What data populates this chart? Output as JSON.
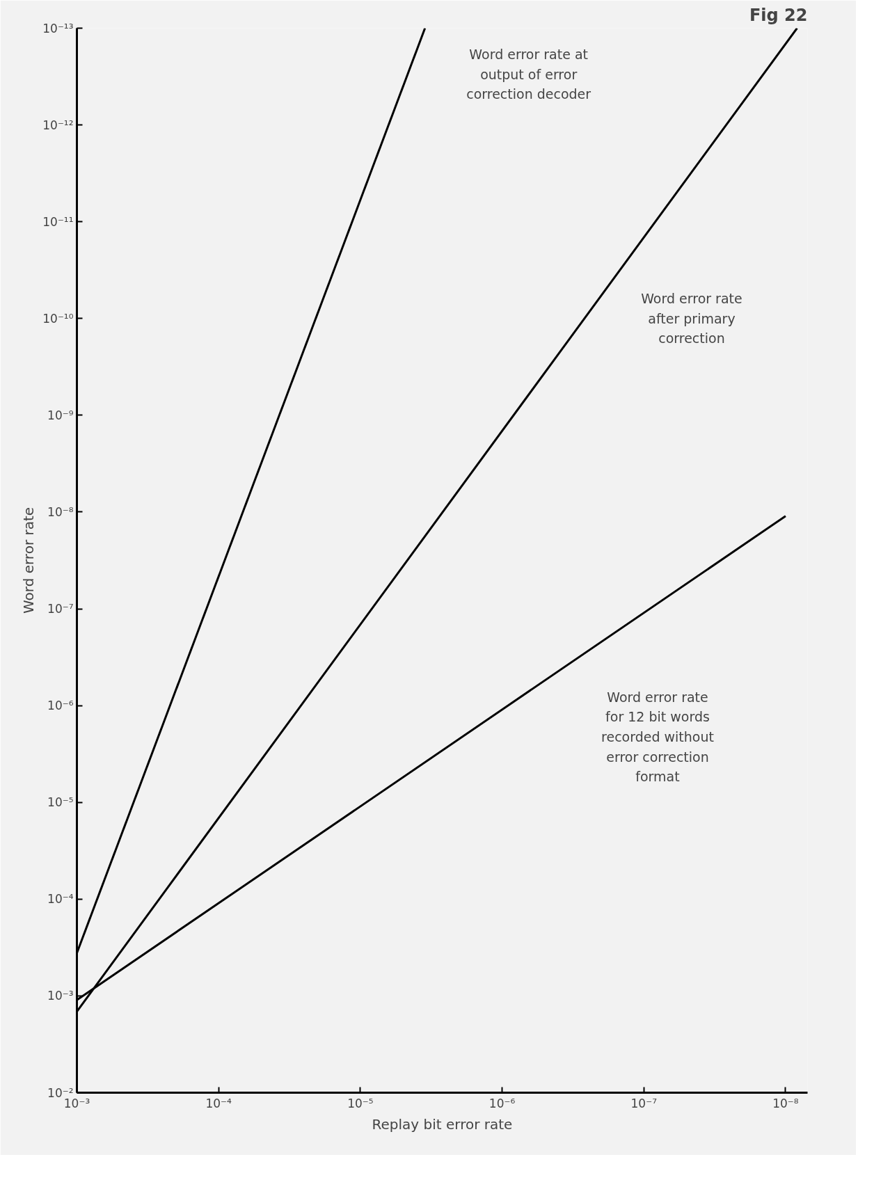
{
  "chart_data": {
    "type": "line",
    "xlabel": "Replay bit error rate",
    "ylabel": "Word error rate",
    "log": "xy",
    "grid": false,
    "marker": "none",
    "line_style": "solid",
    "xlim": [
      0.001,
      7e-09
    ],
    "ylim": [
      0.01,
      1e-13
    ],
    "xticks": [
      {
        "value": 0.001,
        "label": "10⁻³"
      },
      {
        "value": 0.0001,
        "label": "10⁻⁴"
      },
      {
        "value": 1e-05,
        "label": "10⁻⁵"
      },
      {
        "value": 1e-06,
        "label": "10⁻⁶"
      },
      {
        "value": 1e-07,
        "label": "10⁻⁷"
      },
      {
        "value": 1e-08,
        "label": "10⁻⁸"
      }
    ],
    "yticks": [
      {
        "value": 0.01,
        "label": "10⁻²"
      },
      {
        "value": 0.001,
        "label": "10⁻³"
      },
      {
        "value": 0.0001,
        "label": "10⁻⁴"
      },
      {
        "value": 1e-05,
        "label": "10⁻⁵"
      },
      {
        "value": 1e-06,
        "label": "10⁻⁶"
      },
      {
        "value": 1e-07,
        "label": "10⁻⁷"
      },
      {
        "value": 1e-08,
        "label": "10⁻⁸"
      },
      {
        "value": 1e-09,
        "label": "10⁻⁹"
      },
      {
        "value": 1e-10,
        "label": "10⁻¹⁰"
      },
      {
        "value": 1e-11,
        "label": "10⁻¹¹"
      },
      {
        "value": 1e-12,
        "label": "10⁻¹²"
      },
      {
        "value": 1e-13,
        "label": "10⁻¹³"
      }
    ],
    "series": [
      {
        "color": "#000000",
        "x": [
          0.001,
          3.5e-06
        ],
        "values": [
          0.00036,
          1e-13
        ]
      },
      {
        "color": "#000000",
        "x": [
          0.001,
          8.3e-09
        ],
        "values": [
          0.00145,
          1e-13
        ]
      },
      {
        "color": "#000000",
        "x": [
          0.001,
          1e-08
        ],
        "values": [
          0.0011,
          1.1e-08
        ]
      }
    ],
    "annotations": [
      "Fig 22",
      "Word error rate at\noutput of error\ncorrection decoder",
      "Word error rate\nafter primary\ncorrection",
      "Word error rate\nfor 12 bit words\nrecorded without\nerror correction\nformat"
    ]
  }
}
